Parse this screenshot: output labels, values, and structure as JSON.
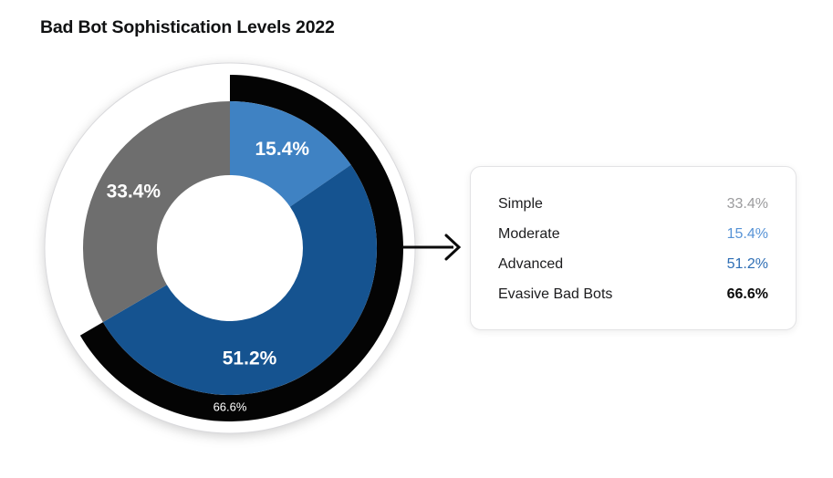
{
  "page": {
    "background_color": "#ffffff"
  },
  "chart_data": {
    "type": "pie",
    "style": "donut-with-outer-ring",
    "title": "Bad Bot Sophistication Levels 2022",
    "units": "%",
    "direction": "clockwise",
    "start_angle_deg": 0,
    "legend_position": "right",
    "segments": [
      {
        "label": "Moderate",
        "value": 15.4,
        "display": "15.4%",
        "color": "#3f82c3",
        "text_color": "#ffffff",
        "label_angle": 28,
        "label_radius": 122
      },
      {
        "label": "Advanced",
        "value": 51.2,
        "display": "51.2%",
        "color": "#155390",
        "text_color": "#ffffff",
        "label_angle": 170,
        "label_radius": 124
      },
      {
        "label": "Simple",
        "value": 33.4,
        "display": "33.4%",
        "color": "#6e6e6e",
        "text_color": "#ffffff",
        "label_angle": 300,
        "label_radius": 122
      }
    ],
    "outer_ring": {
      "label": "Evasive Bad Bots",
      "value": 66.6,
      "display": "66.6%",
      "color": "#040404",
      "text_color": "#ffffff",
      "label_angle": 180,
      "label_radius": 175
    }
  },
  "legend_card": {
    "rows": [
      {
        "label": "Simple",
        "value": "33.4%",
        "value_color": "#9b9b9d",
        "bold": false
      },
      {
        "label": "Moderate",
        "value": "15.4%",
        "value_color": "#5793d6",
        "bold": false
      },
      {
        "label": "Advanced",
        "value": "51.2%",
        "value_color": "#2e6eb5",
        "bold": false
      },
      {
        "label": "Evasive Bad Bots",
        "value": "66.6%",
        "value_color": "#0a0a0a",
        "bold": true
      }
    ]
  },
  "colors": {
    "title": "#111213",
    "plate_fill": "#ffffff",
    "plate_border": "#d9d9dc",
    "arrow": "#0b0b0b",
    "card_border": "#e3e3e5"
  }
}
